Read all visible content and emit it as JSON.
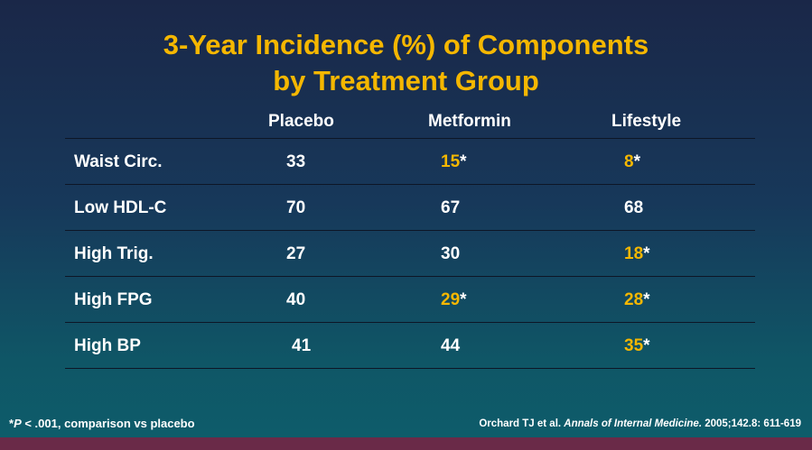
{
  "title": {
    "line1": "3-Year Incidence (%) of Components",
    "line2": "by Treatment Group"
  },
  "columns": [
    "Placebo",
    "Metformin",
    "Lifestyle"
  ],
  "rows": [
    {
      "label": "Waist Circ.",
      "placebo": "33",
      "metformin": "15",
      "metformin_star": "*",
      "lifestyle": "8",
      "lifestyle_star": "*"
    },
    {
      "label": "Low HDL-C",
      "placebo": "70",
      "metformin": "67",
      "metformin_star": "",
      "lifestyle": "68",
      "lifestyle_star": ""
    },
    {
      "label": "High Trig.",
      "placebo": "27",
      "metformin": "30",
      "metformin_star": "",
      "lifestyle": "18",
      "lifestyle_star": "*"
    },
    {
      "label": "High FPG",
      "placebo": "40",
      "metformin": "29",
      "metformin_star": "*",
      "lifestyle": "28",
      "lifestyle_star": "*"
    },
    {
      "label": "High BP",
      "placebo": "41",
      "metformin": "44",
      "metformin_star": "",
      "lifestyle": "35",
      "lifestyle_star": "*"
    }
  ],
  "footnote": {
    "star": "*",
    "p": "P",
    "text": " < .001, comparison vs placebo"
  },
  "citation": {
    "authors": "Orchard TJ et al. ",
    "journal": "Annals of Internal Medicine.",
    "details": " 2005;142.8: 611-619"
  },
  "colors": {
    "title": "#f5b700",
    "significant": "#f5b700",
    "text": "#ffffff",
    "background_top": "#1a2748",
    "background_bottom": "#0e5d6b",
    "bottom_band": "#6a2a48"
  }
}
